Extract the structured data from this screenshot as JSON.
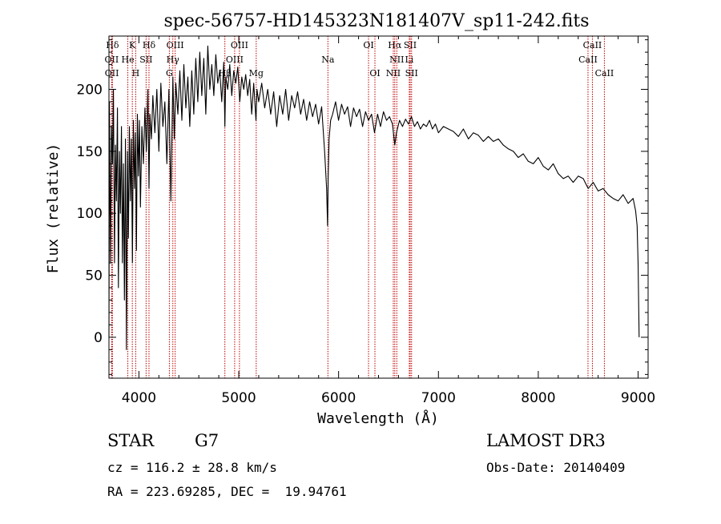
{
  "chart_data": {
    "type": "line",
    "title": "spec-56757-HD145323N181407V_sp11-242.fits",
    "xlabel": "Wavelength (Å)",
    "ylabel": "Flux (relative)",
    "xlim": [
      3700,
      9100
    ],
    "ylim": [
      -33,
      243
    ],
    "xticks": [
      4000,
      5000,
      6000,
      7000,
      8000,
      9000
    ],
    "yticks": [
      0,
      50,
      100,
      150,
      200
    ],
    "series": [
      {
        "name": "flux",
        "x": [
          3700,
          3705,
          3715,
          3725,
          3735,
          3745,
          3755,
          3765,
          3775,
          3785,
          3795,
          3805,
          3815,
          3825,
          3835,
          3845,
          3855,
          3865,
          3875,
          3885,
          3895,
          3905,
          3915,
          3925,
          3935,
          3945,
          3955,
          3965,
          3975,
          3985,
          3995,
          4005,
          4015,
          4030,
          4045,
          4060,
          4075,
          4090,
          4101,
          4110,
          4125,
          4140,
          4160,
          4180,
          4200,
          4220,
          4240,
          4260,
          4280,
          4300,
          4320,
          4340,
          4355,
          4370,
          4390,
          4410,
          4430,
          4450,
          4470,
          4490,
          4510,
          4530,
          4550,
          4570,
          4590,
          4610,
          4630,
          4650,
          4670,
          4690,
          4710,
          4730,
          4750,
          4770,
          4790,
          4810,
          4830,
          4850,
          4861,
          4870,
          4890,
          4910,
          4930,
          4950,
          4970,
          4990,
          5010,
          5030,
          5050,
          5070,
          5090,
          5110,
          5130,
          5150,
          5172,
          5183,
          5200,
          5230,
          5260,
          5290,
          5320,
          5350,
          5380,
          5410,
          5440,
          5470,
          5500,
          5530,
          5560,
          5590,
          5620,
          5650,
          5680,
          5710,
          5740,
          5770,
          5800,
          5830,
          5860,
          5880,
          5890,
          5896,
          5905,
          5920,
          5940,
          5970,
          6000,
          6030,
          6060,
          6090,
          6120,
          6150,
          6180,
          6210,
          6240,
          6270,
          6300,
          6330,
          6360,
          6390,
          6420,
          6450,
          6480,
          6510,
          6540,
          6563,
          6580,
          6610,
          6640,
          6670,
          6700,
          6730,
          6760,
          6790,
          6820,
          6850,
          6880,
          6910,
          6940,
          6970,
          7000,
          7050,
          7100,
          7150,
          7200,
          7250,
          7300,
          7350,
          7400,
          7450,
          7500,
          7550,
          7600,
          7650,
          7700,
          7750,
          7800,
          7850,
          7900,
          7950,
          8000,
          8050,
          8100,
          8150,
          8200,
          8250,
          8300,
          8350,
          8400,
          8450,
          8500,
          8550,
          8600,
          8650,
          8700,
          8750,
          8800,
          8850,
          8900,
          8950,
          8975,
          8990,
          9000,
          9010
        ],
        "values": [
          0,
          190,
          60,
          170,
          140,
          200,
          60,
          155,
          110,
          185,
          40,
          150,
          100,
          170,
          60,
          140,
          30,
          160,
          -10,
          150,
          80,
          170,
          110,
          160,
          60,
          175,
          120,
          165,
          70,
          180,
          130,
          175,
          105,
          170,
          140,
          185,
          150,
          200,
          120,
          180,
          160,
          195,
          165,
          200,
          150,
          205,
          170,
          190,
          140,
          200,
          110,
          210,
          160,
          205,
          180,
          215,
          175,
          220,
          185,
          210,
          170,
          215,
          180,
          225,
          190,
          230,
          195,
          225,
          180,
          235,
          200,
          220,
          195,
          228,
          205,
          215,
          190,
          222,
          170,
          210,
          200,
          220,
          195,
          215,
          205,
          218,
          190,
          210,
          200,
          212,
          195,
          208,
          180,
          205,
          175,
          200,
          190,
          205,
          185,
          200,
          180,
          198,
          170,
          195,
          180,
          200,
          175,
          195,
          185,
          198,
          180,
          192,
          175,
          190,
          178,
          188,
          172,
          186,
          150,
          120,
          90,
          130,
          160,
          175,
          180,
          190,
          175,
          188,
          180,
          186,
          170,
          185,
          178,
          184,
          170,
          182,
          175,
          180,
          165,
          180,
          170,
          182,
          175,
          178,
          172,
          155,
          165,
          175,
          170,
          176,
          172,
          178,
          170,
          174,
          168,
          172,
          170,
          175,
          168,
          172,
          165,
          170,
          168,
          166,
          162,
          168,
          160,
          165,
          163,
          158,
          162,
          158,
          160,
          155,
          152,
          150,
          145,
          148,
          142,
          140,
          145,
          138,
          135,
          140,
          132,
          128,
          130,
          125,
          130,
          128,
          120,
          125,
          118,
          120,
          115,
          112,
          110,
          115,
          108,
          112,
          102,
          90,
          60,
          0
        ]
      }
    ],
    "line_markers": [
      {
        "label": "Hδ",
        "x": 3735,
        "row": 1
      },
      {
        "label": "K",
        "x": 3934,
        "row": 1
      },
      {
        "label": "Hδ",
        "x": 4101,
        "row": 1
      },
      {
        "label": "OIII",
        "x": 4363,
        "row": 1
      },
      {
        "label": "OIII",
        "x": 5007,
        "row": 1
      },
      {
        "label": "OI",
        "x": 6300,
        "row": 1
      },
      {
        "label": "Hα",
        "x": 6563,
        "row": 1
      },
      {
        "label": "SII",
        "x": 6717,
        "row": 1
      },
      {
        "label": "CaII",
        "x": 8542,
        "row": 1
      },
      {
        "label": "OII",
        "x": 3727,
        "row": 2
      },
      {
        "label": "He",
        "x": 3889,
        "row": 2
      },
      {
        "label": "SII",
        "x": 4072,
        "row": 2
      },
      {
        "label": "Hγ",
        "x": 4340,
        "row": 2
      },
      {
        "label": "OIII",
        "x": 4959,
        "row": 2
      },
      {
        "label": "Na",
        "x": 5893,
        "row": 2
      },
      {
        "label": "NII",
        "x": 6583,
        "row": 2
      },
      {
        "label": "Li",
        "x": 6708,
        "row": 2
      },
      {
        "label": "CaII",
        "x": 8498,
        "row": 2
      },
      {
        "label": "OII",
        "x": 3729,
        "row": 3
      },
      {
        "label": "H",
        "x": 3968,
        "row": 3
      },
      {
        "label": "G",
        "x": 4305,
        "row": 3
      },
      {
        "label": "Hβ",
        "x": 4861,
        "row": 3
      },
      {
        "label": "Mg",
        "x": 5175,
        "row": 3
      },
      {
        "label": "OI",
        "x": 6364,
        "row": 3
      },
      {
        "label": "NII",
        "x": 6548,
        "row": 3
      },
      {
        "label": "SII",
        "x": 6731,
        "row": 3
      },
      {
        "label": "CaII",
        "x": 8662,
        "row": 3
      }
    ],
    "line_color": "#000000",
    "marker_color": "#c00000"
  },
  "footer": {
    "object_class": "STAR",
    "subclass": "G7",
    "survey": "LAMOST DR3",
    "redshift": "cz = 116.2 ± 28.8 km/s",
    "obs_date": "Obs-Date: 20140409",
    "coords": "RA = 223.69285, DEC =  19.94761"
  }
}
